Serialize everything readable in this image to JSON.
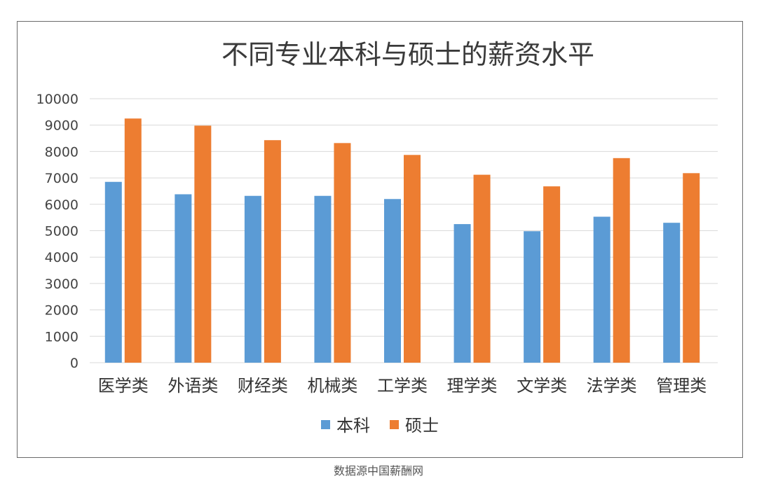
{
  "chart_data": {
    "type": "bar",
    "title": "不同专业本科与硕士的薪资水平",
    "categories": [
      "医学类",
      "外语类",
      "财经类",
      "机械类",
      "工学类",
      "理学类",
      "文学类",
      "法学类",
      "管理类"
    ],
    "series": [
      {
        "name": "本科",
        "color": "#5b9bd5",
        "values": [
          6850,
          6380,
          6320,
          6320,
          6200,
          5250,
          4980,
          5530,
          5300
        ]
      },
      {
        "name": "硕士",
        "color": "#ed7d31",
        "values": [
          9250,
          8980,
          8430,
          8320,
          7870,
          7120,
          6680,
          7750,
          7180
        ]
      }
    ],
    "ylim": [
      0,
      10000
    ],
    "yticks": [
      "0",
      "1000",
      "2000",
      "3000",
      "4000",
      "5000",
      "6000",
      "7000",
      "8000",
      "9000",
      "10000"
    ],
    "grid": true,
    "legend_position": "bottom"
  },
  "source_note": "数据源中国薪酬网"
}
